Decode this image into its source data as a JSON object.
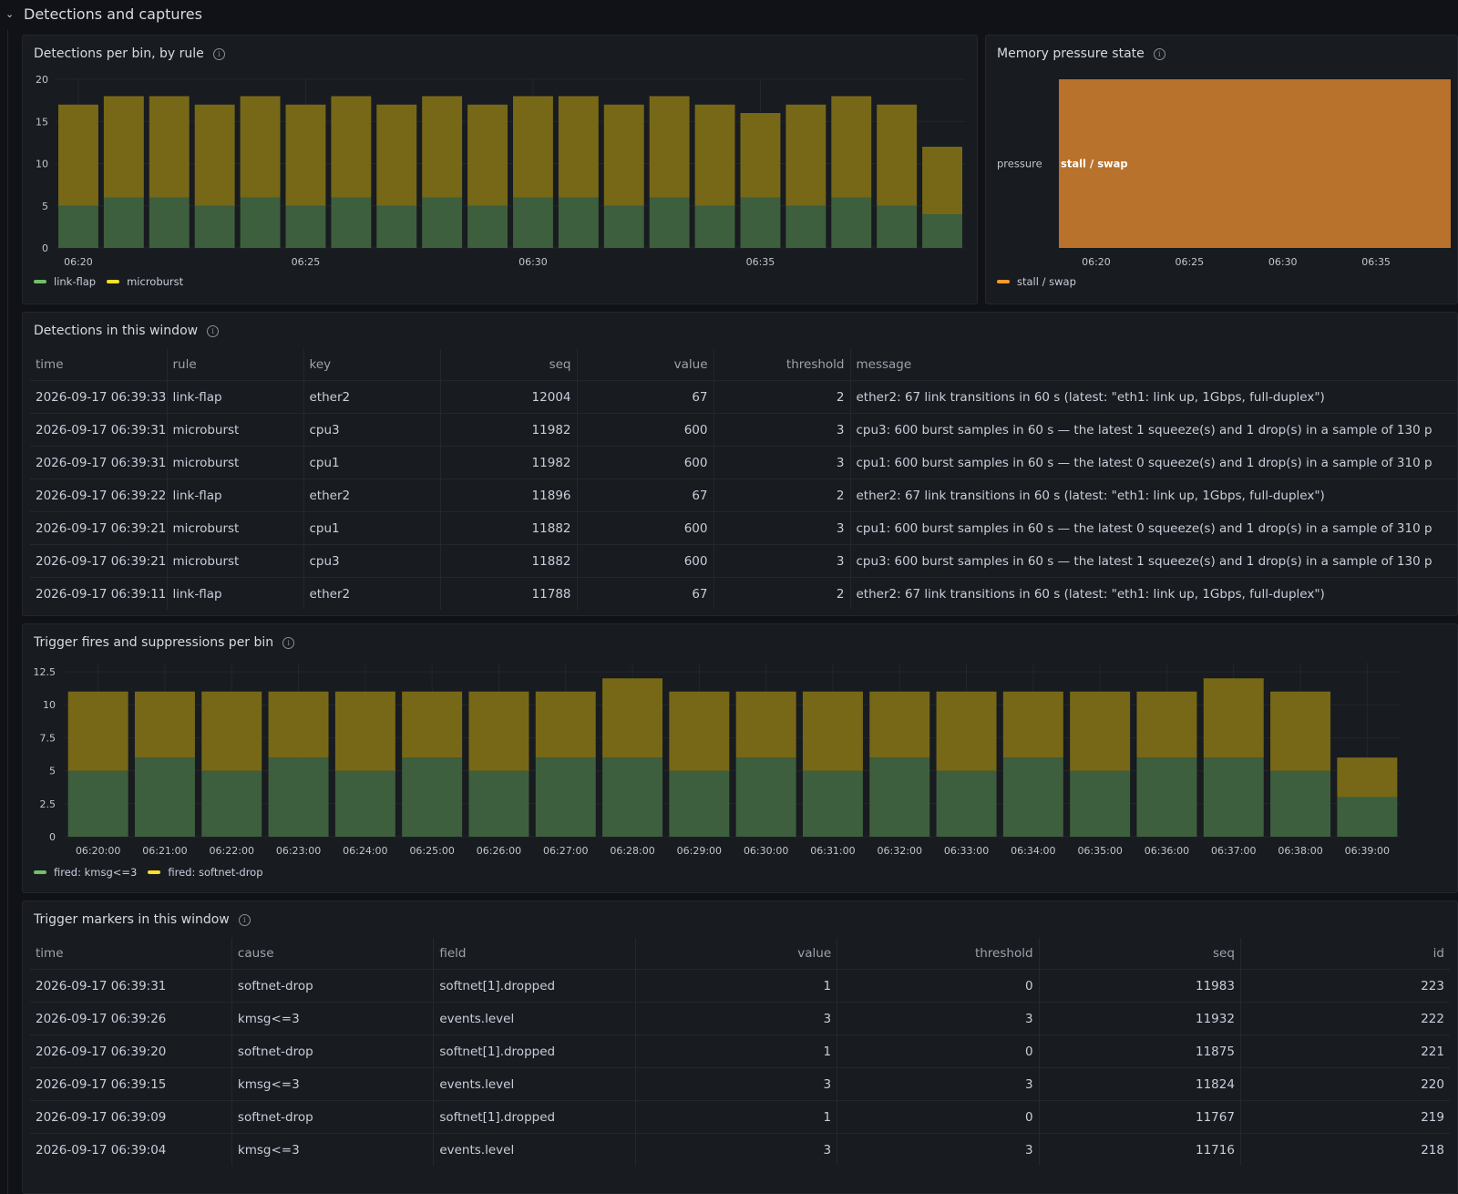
{
  "section": {
    "title": "Detections and captures"
  },
  "panels": {
    "detections_chart": {
      "title": "Detections per bin, by rule",
      "legend": [
        "link-flap",
        "microburst"
      ],
      "colors": {
        "base": "#3e5f3d",
        "top": "#776818",
        "legend_base": "#73bf69",
        "legend_top": "#fade2a"
      }
    },
    "memory": {
      "title": "Memory pressure state",
      "row_label": "pressure",
      "state_label": "stall / swap",
      "legend": [
        "stall / swap"
      ],
      "colors": {
        "fill": "#b8722c",
        "legend": "#ff9830"
      }
    },
    "detections_table": {
      "title": "Detections in this window",
      "columns": [
        "time",
        "rule",
        "key",
        "seq",
        "value",
        "threshold",
        "message"
      ],
      "rows": [
        [
          "2026-09-17 06:39:33",
          "link-flap",
          "ether2",
          "12004",
          "67",
          "2",
          "ether2: 67 link transitions in 60 s (latest: \"eth1: link up, 1Gbps, full-duplex\")"
        ],
        [
          "2026-09-17 06:39:31",
          "microburst",
          "cpu3",
          "11982",
          "600",
          "3",
          "cpu3: 600 burst samples in 60 s — the latest 1 squeeze(s) and 1 drop(s) in a sample of 130 p"
        ],
        [
          "2026-09-17 06:39:31",
          "microburst",
          "cpu1",
          "11982",
          "600",
          "3",
          "cpu1: 600 burst samples in 60 s — the latest 0 squeeze(s) and 1 drop(s) in a sample of 310 p"
        ],
        [
          "2026-09-17 06:39:22",
          "link-flap",
          "ether2",
          "11896",
          "67",
          "2",
          "ether2: 67 link transitions in 60 s (latest: \"eth1: link up, 1Gbps, full-duplex\")"
        ],
        [
          "2026-09-17 06:39:21",
          "microburst",
          "cpu1",
          "11882",
          "600",
          "3",
          "cpu1: 600 burst samples in 60 s — the latest 0 squeeze(s) and 1 drop(s) in a sample of 310 p"
        ],
        [
          "2026-09-17 06:39:21",
          "microburst",
          "cpu3",
          "11882",
          "600",
          "3",
          "cpu3: 600 burst samples in 60 s — the latest 1 squeeze(s) and 1 drop(s) in a sample of 130 p"
        ],
        [
          "2026-09-17 06:39:11",
          "link-flap",
          "ether2",
          "11788",
          "67",
          "2",
          "ether2: 67 link transitions in 60 s (latest: \"eth1: link up, 1Gbps, full-duplex\")"
        ]
      ]
    },
    "trigger_chart": {
      "title": "Trigger fires and suppressions per bin",
      "legend": [
        "fired: kmsg<=3",
        "fired: softnet-drop"
      ]
    },
    "trigger_table": {
      "title": "Trigger markers in this window",
      "columns": [
        "time",
        "cause",
        "field",
        "value",
        "threshold",
        "seq",
        "id"
      ],
      "rows": [
        [
          "2026-09-17 06:39:31",
          "softnet-drop",
          "softnet[1].dropped",
          "1",
          "0",
          "11983",
          "223"
        ],
        [
          "2026-09-17 06:39:26",
          "kmsg<=3",
          "events.level",
          "3",
          "3",
          "11932",
          "222"
        ],
        [
          "2026-09-17 06:39:20",
          "softnet-drop",
          "softnet[1].dropped",
          "1",
          "0",
          "11875",
          "221"
        ],
        [
          "2026-09-17 06:39:15",
          "kmsg<=3",
          "events.level",
          "3",
          "3",
          "11824",
          "220"
        ],
        [
          "2026-09-17 06:39:09",
          "softnet-drop",
          "softnet[1].dropped",
          "1",
          "0",
          "11767",
          "219"
        ],
        [
          "2026-09-17 06:39:04",
          "kmsg<=3",
          "events.level",
          "3",
          "3",
          "11716",
          "218"
        ]
      ]
    }
  },
  "chart_data": [
    {
      "type": "bar",
      "title": "Detections per bin, by rule",
      "stacked": true,
      "ylim": [
        0,
        20
      ],
      "yticks": [
        0,
        5,
        10,
        15,
        20
      ],
      "xticks": [
        "06:20",
        "06:25",
        "06:30",
        "06:35"
      ],
      "series": [
        {
          "name": "link-flap",
          "values": [
            5,
            6,
            6,
            5,
            6,
            5,
            6,
            5,
            6,
            5,
            6,
            6,
            5,
            6,
            5,
            6,
            5,
            6,
            5,
            4
          ]
        },
        {
          "name": "microburst",
          "values": [
            12,
            12,
            12,
            12,
            12,
            12,
            12,
            12,
            12,
            12,
            12,
            12,
            12,
            12,
            12,
            10,
            12,
            12,
            12,
            8
          ]
        }
      ],
      "grid": true,
      "legend": "bottom-left"
    },
    {
      "type": "state-timeline",
      "title": "Memory pressure state",
      "rows": [
        "pressure"
      ],
      "states": [
        {
          "label": "stall / swap",
          "start": "06:18",
          "end": "06:39"
        }
      ],
      "xticks": [
        "06:20",
        "06:25",
        "06:30",
        "06:35"
      ],
      "legend": "bottom-left"
    },
    {
      "type": "bar",
      "title": "Trigger fires and suppressions per bin",
      "stacked": true,
      "ylim": [
        0,
        12.5
      ],
      "yticks": [
        "0",
        "2.5",
        "5",
        "7.5",
        "10",
        "12.5"
      ],
      "categories": [
        "06:20:00",
        "06:21:00",
        "06:22:00",
        "06:23:00",
        "06:24:00",
        "06:25:00",
        "06:26:00",
        "06:27:00",
        "06:28:00",
        "06:29:00",
        "06:30:00",
        "06:31:00",
        "06:32:00",
        "06:33:00",
        "06:34:00",
        "06:35:00",
        "06:36:00",
        "06:37:00",
        "06:38:00",
        "06:39:00"
      ],
      "series": [
        {
          "name": "fired: kmsg<=3",
          "values": [
            5,
            6,
            5,
            6,
            5,
            6,
            5,
            6,
            6,
            5,
            6,
            5,
            6,
            5,
            6,
            5,
            6,
            6,
            5,
            3
          ]
        },
        {
          "name": "fired: softnet-drop",
          "values": [
            6,
            5,
            6,
            5,
            6,
            5,
            6,
            5,
            6,
            6,
            5,
            6,
            5,
            6,
            5,
            6,
            5,
            6,
            6,
            3
          ]
        }
      ],
      "grid": true,
      "legend": "bottom-left"
    }
  ]
}
